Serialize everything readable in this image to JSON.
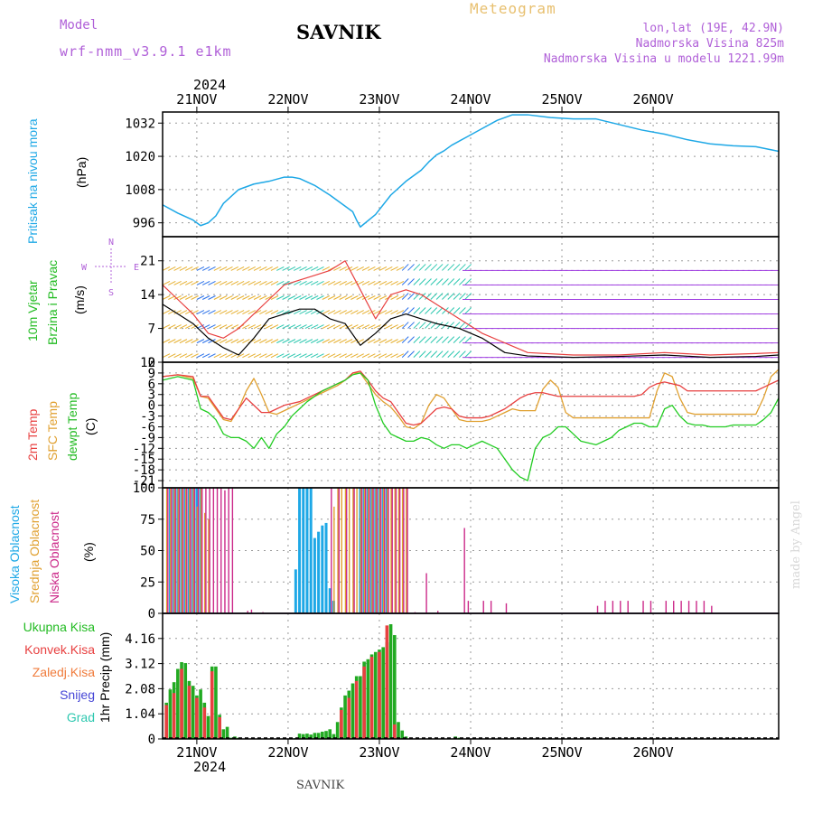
{
  "header": {
    "model_label": "Model",
    "model_name": "wrf-nmm_v3.9.1 e1km",
    "title": "SAVNIK",
    "meteogram_label": "Meteogram",
    "lonlat": "lon,lat (19E, 42.9N)",
    "altitude": "Nadmorska Visina 825m",
    "model_altitude": "Nadmorska Visina u modelu 1221.99m",
    "year_top": "2024",
    "year_bottom": "2024",
    "footer_station": "SAVNIK",
    "watermark": "made by Angel"
  },
  "colors": {
    "pressure": "#1ea8e6",
    "temp2m": "#e84040",
    "sfc": "#e0a030",
    "dew": "#22cc22",
    "high": "#1ea8e6",
    "mid": "#e0a030",
    "low": "#cc2a8a",
    "precip_total": "#22aa22",
    "precip_conv": "#e84040",
    "precip_frz": "#f07b3b",
    "snow": "#4646d6",
    "graupel": "#2ec8b0"
  },
  "day_labels": [
    "21NOV",
    "22NOV",
    "23NOV",
    "24NOV",
    "25NOV",
    "26NOV"
  ],
  "panel_labels": {
    "pressure": [
      {
        "text": "Pritisak na nivou mora",
        "color": "#1ea8e6"
      },
      {
        "text": "(hPa)",
        "color": "#000000"
      }
    ],
    "wind": [
      {
        "text": "10m Vjetar",
        "color": "#22bb22"
      },
      {
        "text": "Brzina i Pravac",
        "color": "#22bb22"
      },
      {
        "text": "(m/s)",
        "color": "#000000"
      }
    ],
    "temperature": [
      {
        "text": "2m Temp",
        "color": "#e84040"
      },
      {
        "text": "SFC Temp",
        "color": "#e0a030"
      },
      {
        "text": "dewpt Temp",
        "color": "#22bb22"
      },
      {
        "text": "(C)",
        "color": "#000000"
      }
    ],
    "cloud": [
      {
        "text": "Visoka Oblacnost",
        "color": "#1ea8e6"
      },
      {
        "text": "Srednja Oblacnost",
        "color": "#e0a030"
      },
      {
        "text": "Niska Oblacnost",
        "color": "#cc2a8a"
      },
      {
        "text": "(%)",
        "color": "#000000"
      }
    ],
    "precip_unit": "1hr Precip (mm)",
    "precip_legend": [
      {
        "text": "Ukupna Kisa",
        "color": "#22bb22"
      },
      {
        "text": "Konvek.Kisa",
        "color": "#e84040"
      },
      {
        "text": "Zaledj.Kisa",
        "color": "#f07b3b"
      },
      {
        "text": "Snijeg",
        "color": "#4646d6"
      },
      {
        "text": "Grad",
        "color": "#2ec8b0"
      }
    ]
  },
  "compass": {
    "n": "N",
    "w": "W",
    "e": "E",
    "s": "S"
  },
  "chart_data": [
    {
      "type": "line",
      "name": "pressure",
      "ylabel": "(hPa)",
      "yticks": [
        "1032",
        "1020",
        "1008",
        "996"
      ],
      "ylim": [
        991,
        1036
      ],
      "x": [
        0,
        4,
        8,
        10,
        12,
        14,
        16,
        20,
        24,
        28,
        32,
        34,
        36,
        40,
        44,
        48,
        50,
        51,
        52,
        56,
        60,
        64,
        66,
        68,
        70,
        72,
        74,
        76,
        80,
        84,
        88,
        92,
        96,
        102,
        108,
        114,
        120,
        126,
        132,
        138,
        144,
        150,
        156,
        162
      ],
      "series": [
        {
          "values": [
            1002.5,
            999.5,
            997,
            995,
            996,
            998.5,
            1003,
            1008,
            1010,
            1011,
            1012.5,
            1012.5,
            1012,
            1009.5,
            1006,
            1002,
            1000,
            997,
            994.5,
            999,
            1006,
            1011,
            1013,
            1015,
            1018,
            1020.5,
            1022,
            1024,
            1027,
            1030,
            1033,
            1035,
            1035,
            1034,
            1033.5,
            1033.5,
            1031.5,
            1029.5,
            1028,
            1026,
            1024.5,
            1023.8,
            1023.5,
            1021.8
          ]
        }
      ]
    },
    {
      "type": "line",
      "name": "wind",
      "ylabel": "(m/s)",
      "yticks": [
        "21",
        "14",
        "7",
        "0"
      ],
      "ylim": [
        0,
        26
      ],
      "x": [
        0,
        4,
        8,
        12,
        16,
        20,
        24,
        28,
        32,
        36,
        40,
        44,
        48,
        52,
        56,
        60,
        64,
        68,
        72,
        78,
        84,
        90,
        96,
        108,
        120,
        132,
        144,
        156,
        162
      ],
      "series": [
        {
          "values": [
            16,
            13,
            10,
            6,
            5,
            7,
            10,
            13,
            16,
            17,
            18,
            19,
            21,
            15,
            9,
            14,
            15,
            14,
            12,
            9,
            6,
            4,
            2,
            1.5,
            1.5,
            2,
            1.5,
            1.8,
            2
          ]
        },
        {
          "values": [
            12,
            10,
            8,
            5,
            3,
            1.5,
            5,
            9,
            10,
            11,
            11,
            9,
            8,
            3.5,
            6,
            9,
            10,
            9,
            8,
            7,
            5,
            2,
            1.3,
            1,
            1.2,
            1.5,
            1,
            1.2,
            1.5
          ]
        }
      ]
    },
    {
      "type": "line",
      "name": "temperature",
      "ylabel": "(C)",
      "yticks": [
        "12",
        "9",
        "6",
        "3",
        "0",
        "-3",
        "-6",
        "-9",
        "-12",
        "-15",
        "-18",
        "-21"
      ],
      "ylim": [
        -23,
        12
      ],
      "x": [
        0,
        4,
        8,
        10,
        12,
        14,
        16,
        18,
        20,
        22,
        24,
        26,
        28,
        30,
        32,
        34,
        36,
        38,
        40,
        42,
        44,
        46,
        48,
        50,
        52,
        54,
        56,
        58,
        60,
        62,
        64,
        66,
        68,
        70,
        72,
        74,
        76,
        78,
        80,
        82,
        84,
        86,
        88,
        90,
        92,
        94,
        96,
        98,
        100,
        102,
        104,
        106,
        108,
        110,
        112,
        114,
        116,
        118,
        120,
        122,
        124,
        126,
        128,
        130,
        132,
        134,
        136,
        138,
        140,
        142,
        144,
        146,
        148,
        150,
        152,
        154,
        156,
        158,
        160,
        162
      ],
      "series": [
        {
          "name": "2m Temp",
          "values": [
            8,
            8.5,
            8,
            2.5,
            2.5,
            -0.5,
            -3.5,
            -4,
            -1,
            2,
            0,
            -2,
            -2,
            -1,
            0,
            0.5,
            1,
            2,
            3,
            4,
            5,
            6,
            7,
            9,
            9.5,
            7,
            4,
            2,
            1,
            -2,
            -5,
            -5.5,
            -5,
            -3,
            -1,
            -0.5,
            -1,
            -3,
            -3.5,
            -3.5,
            -3.5,
            -3,
            -2,
            -1,
            0.5,
            2,
            3,
            3.5,
            3.5,
            3,
            2.5,
            2.5,
            2.5,
            2.5,
            2.5,
            2.5,
            2.5,
            2.5,
            2.5,
            2.5,
            2.5,
            3,
            5,
            6,
            6.5,
            6,
            5.5,
            4,
            4,
            4,
            4,
            4,
            4,
            4,
            4,
            4,
            4,
            5,
            6,
            7
          ]
        },
        {
          "name": "SFC Temp",
          "values": [
            8,
            8.5,
            7.5,
            2.5,
            2,
            -1,
            -4,
            -4.5,
            -1,
            4,
            7.5,
            3,
            -2,
            -2.5,
            -1.5,
            -0.5,
            0.5,
            1.5,
            2.5,
            3.5,
            4.5,
            5.5,
            7,
            9,
            9,
            6,
            3,
            1,
            -0.5,
            -3,
            -6,
            -6.5,
            -5,
            0,
            3,
            2,
            -1,
            -4,
            -4.5,
            -4.5,
            -4.5,
            -4,
            -3,
            -2,
            -1,
            -1.5,
            -1.5,
            -1.5,
            4.5,
            7,
            5,
            -2,
            -3.5,
            -3.5,
            -3.5,
            -3.5,
            -3.5,
            -3.5,
            -3.5,
            -3.5,
            -3.5,
            -3.5,
            -3.5,
            4,
            9,
            8,
            2,
            -2,
            -2.5,
            -2.5,
            -2.5,
            -2.5,
            -2.5,
            -2.5,
            -2.5,
            -2.5,
            -2.5,
            2,
            8,
            10
          ]
        },
        {
          "name": "dewpt Temp",
          "values": [
            7,
            8,
            7,
            -1,
            -2,
            -4,
            -8,
            -9,
            -9,
            -10,
            -12,
            -9,
            -12,
            -8,
            -6,
            -3,
            -1,
            1,
            2.5,
            4,
            5,
            6,
            7,
            8.5,
            9,
            7,
            0,
            -5,
            -8,
            -9,
            -10,
            -10,
            -9,
            -9.5,
            -11,
            -12,
            -11,
            -11,
            -12,
            -11,
            -10,
            -11,
            -12,
            -15,
            -18,
            -20,
            -21,
            -12,
            -9,
            -8,
            -6,
            -6,
            -8,
            -10,
            -10.5,
            -11,
            -10,
            -9,
            -7,
            -6,
            -5,
            -5,
            -6,
            -6,
            -1,
            0,
            -3,
            -5,
            -5.5,
            -5.5,
            -6,
            -6,
            -6,
            -5.5,
            -5.5,
            -5.5,
            -5.5,
            -4,
            -2,
            2
          ]
        }
      ]
    },
    {
      "type": "bar",
      "name": "cloud",
      "ylabel": "(%)",
      "yticks": [
        "100",
        "75",
        "50",
        "25",
        "0"
      ],
      "ylim": [
        0,
        100
      ],
      "series": [
        {
          "name": "Visoka Oblacnost",
          "x": [
            2,
            3,
            4,
            5,
            6,
            7,
            8,
            9,
            10,
            35,
            36,
            37,
            38,
            39,
            40,
            41,
            42,
            43,
            44,
            45,
            52,
            53,
            54,
            55,
            56,
            57,
            58,
            59
          ],
          "values": [
            100,
            100,
            100,
            100,
            100,
            100,
            100,
            100,
            100,
            35,
            100,
            100,
            100,
            100,
            60,
            65,
            70,
            72,
            20,
            10,
            100,
            100,
            100,
            100,
            100,
            100,
            100,
            100
          ]
        },
        {
          "name": "Srednja Oblacnost",
          "x": [
            1,
            2,
            3,
            4,
            5,
            6,
            7,
            8,
            9,
            10,
            11,
            12,
            45,
            46,
            47,
            48,
            49,
            50,
            51,
            52,
            53,
            54,
            55,
            56,
            57,
            58,
            59,
            60,
            61,
            62,
            63,
            64
          ],
          "values": [
            100,
            100,
            100,
            100,
            100,
            100,
            100,
            100,
            85,
            100,
            80,
            75,
            85,
            100,
            100,
            100,
            100,
            100,
            100,
            100,
            100,
            100,
            100,
            100,
            100,
            100,
            100,
            100,
            100,
            100,
            100,
            100
          ]
        },
        {
          "name": "Niska Oblacnost",
          "x": [
            1,
            2,
            3,
            4,
            5,
            6,
            7,
            8,
            9,
            10,
            11,
            12,
            13,
            14,
            15,
            16,
            17,
            18,
            22,
            23,
            26,
            44,
            46,
            48,
            50,
            52,
            53,
            54,
            55,
            56,
            57,
            58,
            59,
            60,
            61,
            62,
            63,
            64,
            66,
            69,
            72,
            79,
            80,
            84,
            86,
            90,
            114,
            116,
            118,
            120,
            122,
            126,
            128,
            132,
            134,
            136,
            138,
            140,
            142,
            144
          ],
          "values": [
            100,
            100,
            100,
            100,
            100,
            100,
            100,
            100,
            100,
            100,
            100,
            100,
            100,
            100,
            100,
            98,
            100,
            100,
            2,
            3,
            1,
            100,
            100,
            100,
            100,
            100,
            100,
            100,
            100,
            100,
            100,
            100,
            100,
            100,
            100,
            100,
            100,
            100,
            1,
            32,
            2,
            68,
            10,
            10,
            10,
            8,
            6,
            10,
            10,
            10,
            10,
            10,
            10,
            10,
            10,
            10,
            10,
            10,
            10,
            6
          ]
        }
      ]
    },
    {
      "type": "bar",
      "name": "precipitation",
      "ylabel": "1hr Precip (mm)",
      "yticks": [
        "4.16",
        "3.12",
        "2.08",
        "1.04",
        "0"
      ],
      "ylim": [
        0,
        5.2
      ],
      "series": [
        {
          "name": "Ukupna Kisa",
          "x": [
            0,
            1,
            2,
            3,
            4,
            5,
            6,
            7,
            8,
            9,
            10,
            11,
            12,
            13,
            14,
            15,
            16,
            17,
            18,
            19,
            20,
            21,
            22,
            23,
            24,
            25,
            26,
            35,
            36,
            37,
            38,
            39,
            40,
            41,
            42,
            43,
            44,
            45,
            46,
            47,
            48,
            49,
            50,
            51,
            52,
            53,
            54,
            55,
            56,
            57,
            58,
            59,
            60,
            61,
            62,
            63,
            64,
            65,
            66,
            67,
            68,
            69,
            70,
            71,
            72,
            73,
            74,
            75,
            76,
            77,
            78,
            79
          ],
          "values": [
            0,
            1.5,
            2.05,
            2.35,
            2.9,
            3.18,
            3.14,
            2.4,
            2.2,
            1.8,
            2.05,
            1.5,
            0.95,
            3.0,
            3.0,
            1.0,
            0.4,
            0.5,
            0.05,
            0.1,
            0.05,
            0,
            0,
            0,
            0,
            0,
            0,
            0.03,
            0.22,
            0.2,
            0.22,
            0.18,
            0.25,
            0.25,
            0.3,
            0.33,
            0.4,
            0.2,
            0.7,
            1.3,
            1.8,
            2.0,
            2.3,
            2.6,
            2.6,
            3.2,
            3.3,
            3.5,
            3.6,
            3.7,
            3.8,
            4.0,
            4.75,
            4.3,
            0.7,
            0.35,
            0.1,
            0,
            0,
            0,
            0,
            0,
            0,
            0,
            0,
            0,
            0,
            0,
            0,
            0.1,
            0.05,
            0
          ]
        },
        {
          "name": "Konvek.Kisa",
          "x": [
            1,
            3,
            5,
            7,
            9,
            11,
            13,
            15,
            47,
            49,
            51,
            53,
            55,
            57,
            59,
            61
          ],
          "values": [
            1.4,
            1.9,
            2.9,
            2.2,
            1.7,
            1.3,
            2.8,
            0.9,
            1.2,
            1.7,
            2.4,
            3.0,
            3.4,
            3.6,
            4.7,
            0.6
          ]
        }
      ]
    }
  ]
}
